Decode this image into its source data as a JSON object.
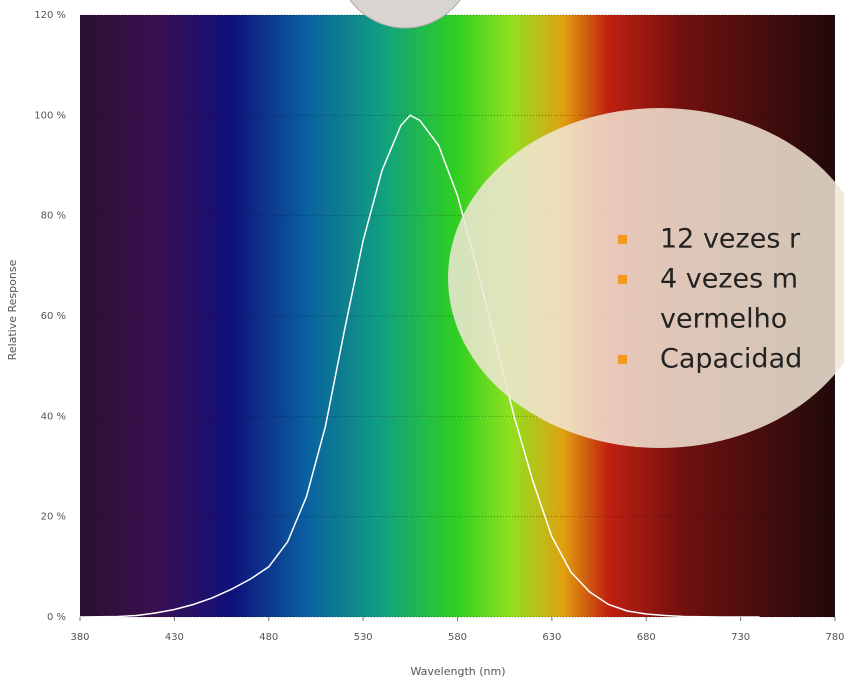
{
  "chart_data": {
    "type": "line",
    "x": [
      380,
      400,
      410,
      420,
      430,
      440,
      450,
      460,
      470,
      480,
      490,
      500,
      510,
      520,
      530,
      540,
      550,
      555,
      560,
      570,
      580,
      590,
      600,
      610,
      620,
      630,
      640,
      650,
      660,
      670,
      680,
      690,
      700,
      720,
      740
    ],
    "values": [
      0,
      0.1,
      0.3,
      0.8,
      1.5,
      2.5,
      3.8,
      5.5,
      7.5,
      10,
      15,
      24,
      38,
      57,
      75,
      89,
      98,
      100,
      99,
      94,
      84,
      70,
      55,
      40,
      27,
      16,
      9,
      5,
      2.5,
      1.2,
      0.6,
      0.3,
      0.1,
      0,
      0
    ],
    "color": "#ffffff",
    "xlim": [
      380,
      780
    ],
    "xticks": [
      380,
      430,
      480,
      530,
      580,
      630,
      680,
      730,
      780
    ],
    "ylim": [
      0,
      120
    ],
    "yticks": [
      {
        "value": 0,
        "label": "0 %"
      },
      {
        "value": 20,
        "label": "20 %"
      },
      {
        "value": 40,
        "label": "40 %"
      },
      {
        "value": 60,
        "label": "60 %"
      },
      {
        "value": 80,
        "label": "80 %"
      },
      {
        "value": 100,
        "label": "100 %"
      },
      {
        "value": 120,
        "label": "120 %"
      }
    ],
    "grid": true,
    "ylabel": "Relative Response",
    "xlabel": "Wavelength (nm)"
  },
  "callout": {
    "items": [
      [
        "12 vezes r"
      ],
      [
        "4 vezes m",
        "vermelho"
      ],
      [
        "Capacidad"
      ]
    ]
  }
}
